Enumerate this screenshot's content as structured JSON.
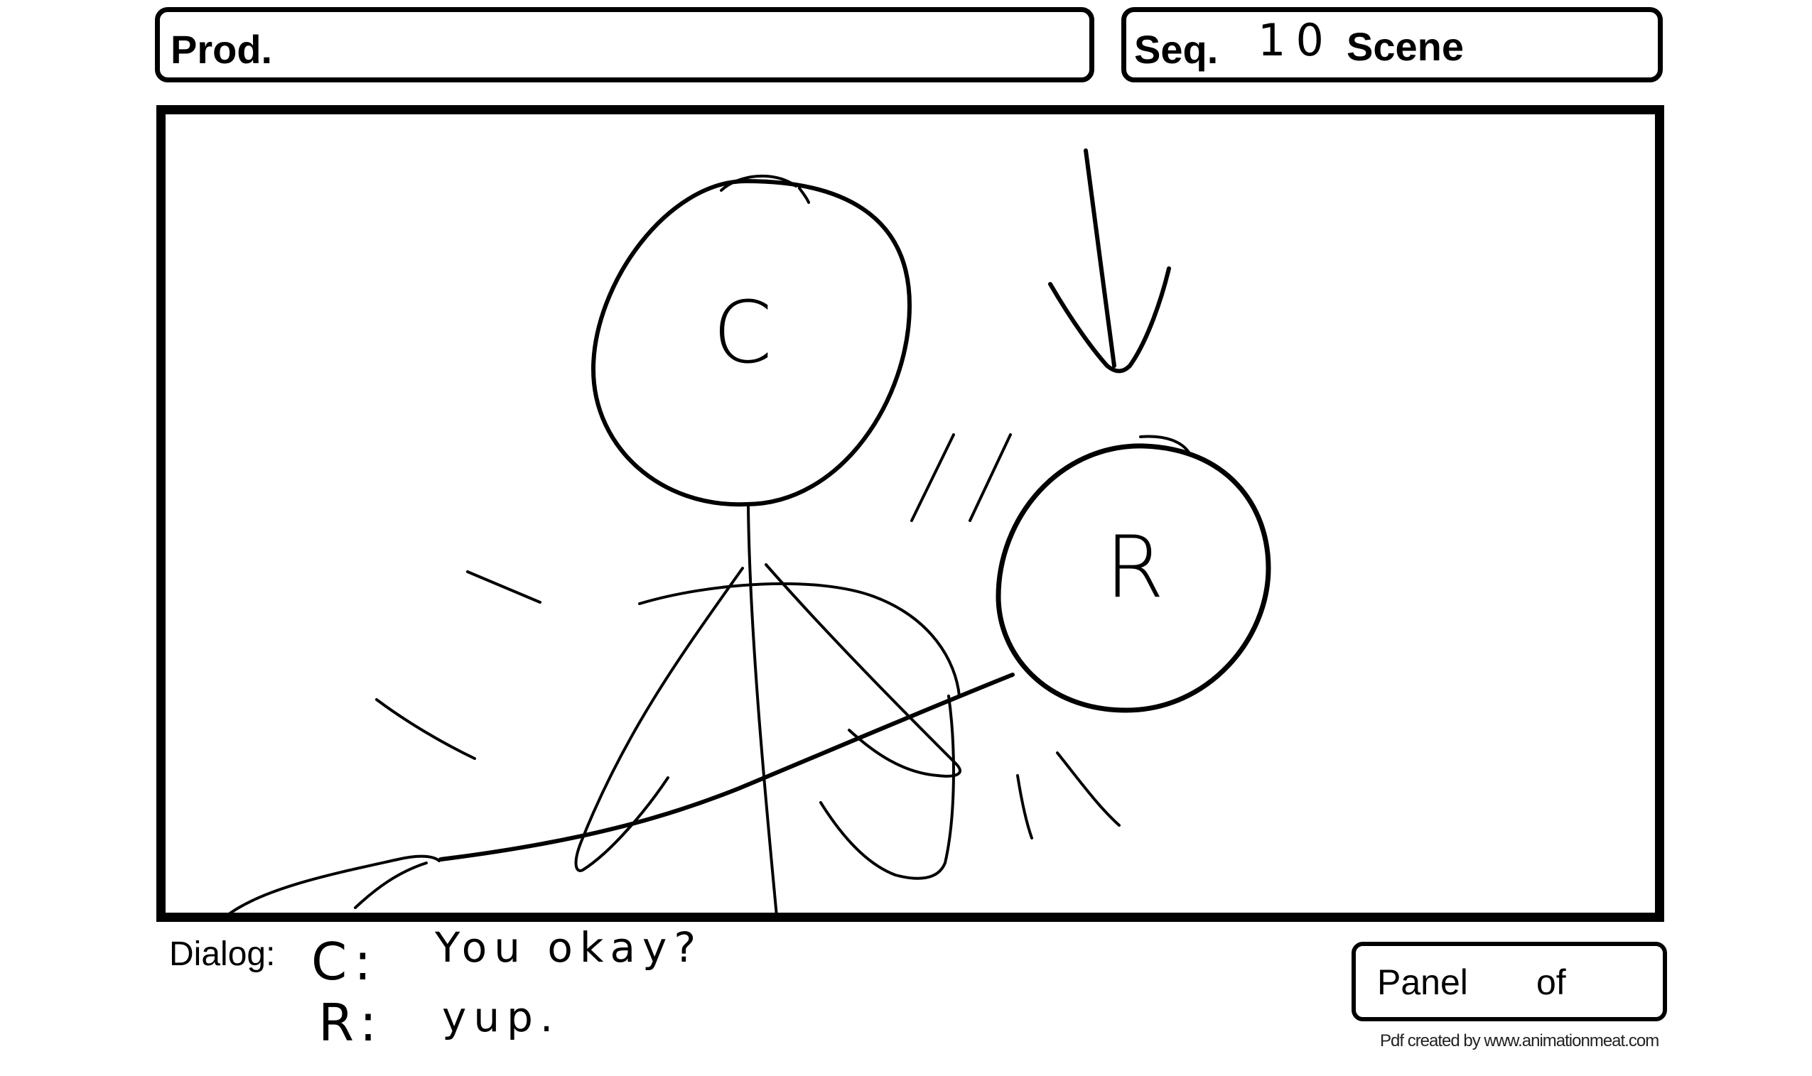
{
  "header": {
    "prod_label": "Prod.",
    "seq_label": "Seq.",
    "seq_value": "10",
    "scene_label": "Scene"
  },
  "panel": {
    "character_c": "C",
    "character_r": "R"
  },
  "dialog": {
    "label": "Dialog:",
    "lines": [
      {
        "speaker": "C:",
        "text": "You okay?"
      },
      {
        "speaker": "R:",
        "text": "yup."
      }
    ]
  },
  "footer": {
    "panel_label": "Panel",
    "of_label": "of",
    "credit": "Pdf created by www.animationmeat.com"
  }
}
